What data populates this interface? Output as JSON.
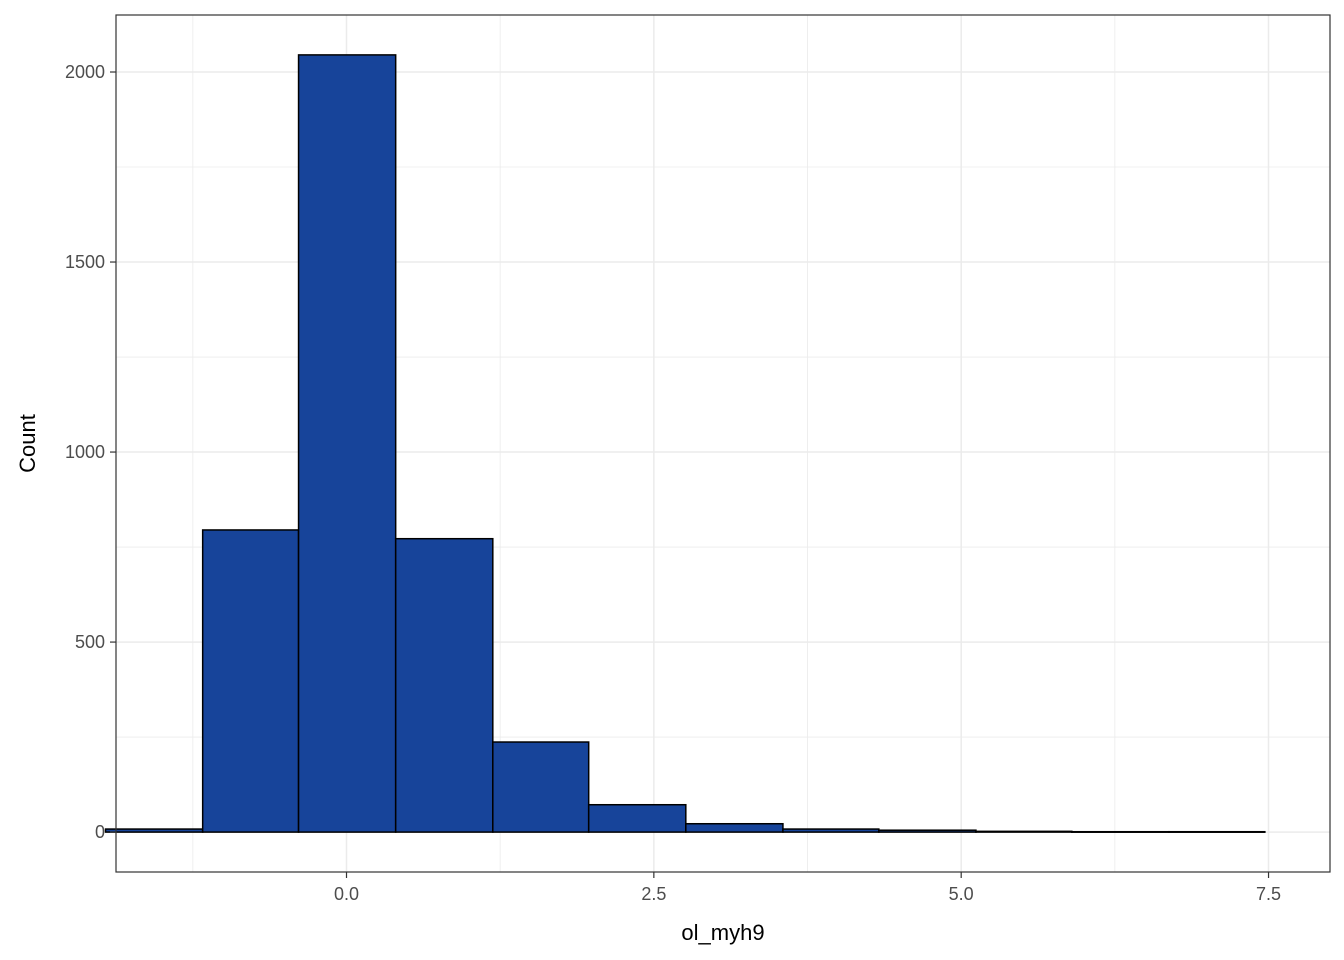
{
  "chart_data": {
    "type": "bar",
    "subtype": "histogram",
    "xlabel": "ol_myh9",
    "ylabel": "Count",
    "xlim": [
      -1.875,
      8.0
    ],
    "ylim": [
      -105,
      2150
    ],
    "x_ticks": [
      0.0,
      2.5,
      5.0,
      7.5
    ],
    "x_tick_labels": [
      "0.0",
      "2.5",
      "5.0",
      "7.5"
    ],
    "y_ticks": [
      0,
      500,
      1000,
      1500,
      2000
    ],
    "y_tick_labels": [
      "0",
      "500",
      "1000",
      "1500",
      "2000"
    ],
    "grid": true,
    "colors": {
      "fill": "#17449a",
      "outline": "#000000",
      "grid": "#ebebeb",
      "panel_border": "#333333"
    },
    "bins": [
      {
        "x0": -1.96,
        "x1": -1.17,
        "count": 8
      },
      {
        "x0": -1.17,
        "x1": -0.39,
        "count": 795
      },
      {
        "x0": -0.39,
        "x1": 0.4,
        "count": 2045
      },
      {
        "x0": 0.4,
        "x1": 1.19,
        "count": 772
      },
      {
        "x0": 1.19,
        "x1": 1.97,
        "count": 237
      },
      {
        "x0": 1.97,
        "x1": 2.76,
        "count": 72
      },
      {
        "x0": 2.76,
        "x1": 3.55,
        "count": 22
      },
      {
        "x0": 3.55,
        "x1": 4.33,
        "count": 8
      },
      {
        "x0": 4.33,
        "x1": 5.12,
        "count": 5
      },
      {
        "x0": 5.12,
        "x1": 5.9,
        "count": 2
      },
      {
        "x0": 5.9,
        "x1": 6.69,
        "count": 1
      },
      {
        "x0": 6.69,
        "x1": 7.47,
        "count": 1
      }
    ]
  }
}
